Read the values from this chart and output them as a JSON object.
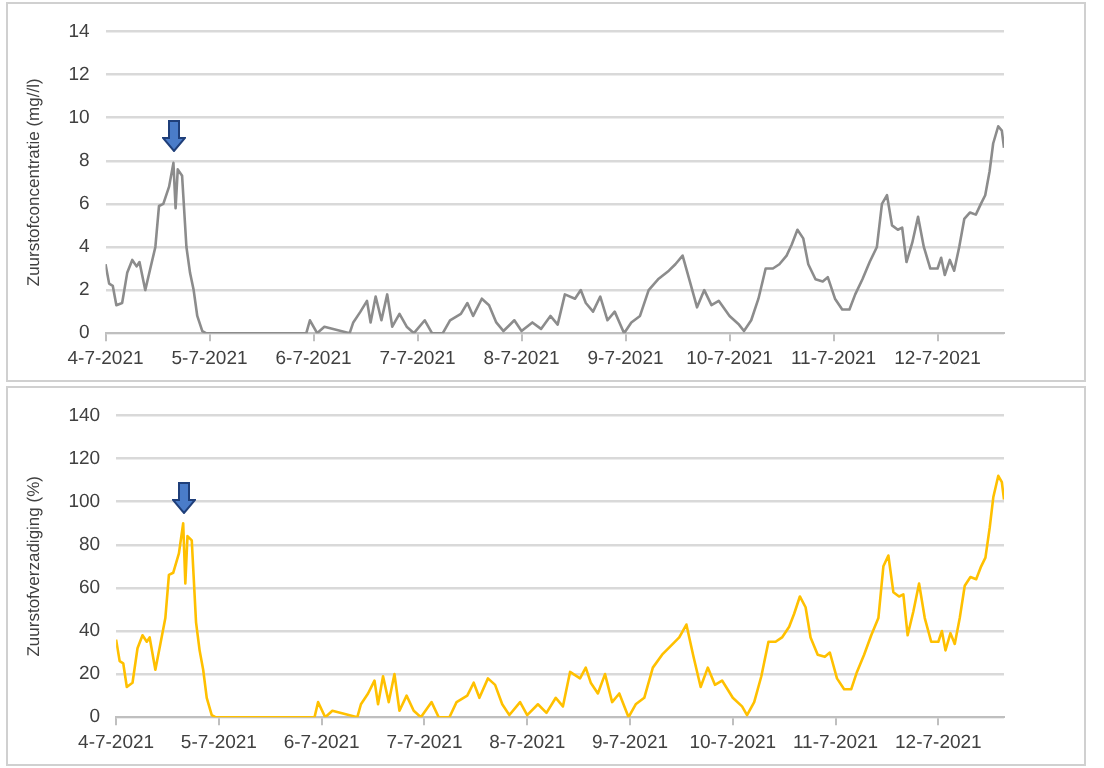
{
  "chart_data": [
    {
      "type": "line",
      "ylabel": "Zuurstofconcentratie (mg//l)",
      "grid": "y",
      "legend": false,
      "marker": "none",
      "line_style": "solid",
      "xlim": [
        "2021-07-04T00:00",
        "2021-07-12T15:20"
      ],
      "ylim": [
        0,
        14
      ],
      "yticks": [
        0,
        2,
        4,
        6,
        8,
        10,
        12,
        14
      ],
      "xticks": [
        {
          "value": "2021-07-04",
          "label": "4-7-2021"
        },
        {
          "value": "2021-07-05",
          "label": "5-7-2021"
        },
        {
          "value": "2021-07-06",
          "label": "6-7-2021"
        },
        {
          "value": "2021-07-07",
          "label": "7-7-2021"
        },
        {
          "value": "2021-07-08",
          "label": "8-7-2021"
        },
        {
          "value": "2021-07-09",
          "label": "9-7-2021"
        },
        {
          "value": "2021-07-10",
          "label": "10-7-2021"
        },
        {
          "value": "2021-07-11",
          "label": "11-7-2021"
        },
        {
          "value": "2021-07-12",
          "label": "12-7-2021"
        }
      ],
      "x": [
        "2021-07-04T00:00",
        "2021-07-04T00:50",
        "2021-07-04T01:40",
        "2021-07-04T02:30",
        "2021-07-04T03:50",
        "2021-07-04T05:00",
        "2021-07-04T06:10",
        "2021-07-04T07:10",
        "2021-07-04T07:50",
        "2021-07-04T09:10",
        "2021-07-04T10:20",
        "2021-07-04T11:30",
        "2021-07-04T12:20",
        "2021-07-04T13:20",
        "2021-07-04T14:40",
        "2021-07-04T15:40",
        "2021-07-04T16:10",
        "2021-07-04T16:40",
        "2021-07-04T17:40",
        "2021-07-04T18:40",
        "2021-07-04T19:30",
        "2021-07-04T20:20",
        "2021-07-04T21:10",
        "2021-07-04T22:20",
        "2021-07-04T23:10",
        "2021-07-05T22:20",
        "2021-07-05T23:10",
        "2021-07-06T00:50",
        "2021-07-06T02:30",
        "2021-07-06T08:20",
        "2021-07-06T09:10",
        "2021-07-06T10:50",
        "2021-07-06T12:20",
        "2021-07-06T13:10",
        "2021-07-06T14:20",
        "2021-07-06T15:40",
        "2021-07-06T17:00",
        "2021-07-06T18:10",
        "2021-07-06T19:50",
        "2021-07-06T21:30",
        "2021-07-06T23:10",
        "2021-07-07T01:40",
        "2021-07-07T03:20",
        "2021-07-07T05:50",
        "2021-07-07T07:30",
        "2021-07-07T10:00",
        "2021-07-07T11:30",
        "2021-07-07T12:50",
        "2021-07-07T14:50",
        "2021-07-07T16:30",
        "2021-07-07T18:10",
        "2021-07-07T19:50",
        "2021-07-07T22:20",
        "2021-07-08T00:00",
        "2021-07-08T02:30",
        "2021-07-08T04:30",
        "2021-07-08T06:40",
        "2021-07-08T08:20",
        "2021-07-08T10:00",
        "2021-07-08T12:20",
        "2021-07-08T13:40",
        "2021-07-08T14:50",
        "2021-07-08T16:30",
        "2021-07-08T18:10",
        "2021-07-08T19:50",
        "2021-07-08T21:30",
        "2021-07-08T23:40",
        "2021-07-09T01:20",
        "2021-07-09T03:20",
        "2021-07-09T05:20",
        "2021-07-09T07:30",
        "2021-07-09T10:00",
        "2021-07-09T11:30",
        "2021-07-09T13:10",
        "2021-07-09T14:50",
        "2021-07-09T16:30",
        "2021-07-09T18:10",
        "2021-07-09T19:50",
        "2021-07-09T21:30",
        "2021-07-10T00:00",
        "2021-07-10T02:10",
        "2021-07-10T03:20",
        "2021-07-10T05:00",
        "2021-07-10T06:40",
        "2021-07-10T08:20",
        "2021-07-10T10:00",
        "2021-07-10T11:30",
        "2021-07-10T13:10",
        "2021-07-10T14:20",
        "2021-07-10T15:40",
        "2021-07-10T17:00",
        "2021-07-10T18:10",
        "2021-07-10T19:50",
        "2021-07-10T21:30",
        "2021-07-10T22:40",
        "2021-07-11T00:20",
        "2021-07-11T02:00",
        "2021-07-11T03:40",
        "2021-07-11T05:00",
        "2021-07-11T06:40",
        "2021-07-11T08:20",
        "2021-07-11T10:00",
        "2021-07-11T11:10",
        "2021-07-11T12:20",
        "2021-07-11T13:30",
        "2021-07-11T14:50",
        "2021-07-11T15:50",
        "2021-07-11T16:50",
        "2021-07-11T18:10",
        "2021-07-11T19:30",
        "2021-07-11T20:50",
        "2021-07-11T22:20",
        "2021-07-12T00:00",
        "2021-07-12T00:50",
        "2021-07-12T01:40",
        "2021-07-12T02:50",
        "2021-07-12T03:50",
        "2021-07-12T05:00",
        "2021-07-12T06:10",
        "2021-07-12T07:30",
        "2021-07-12T08:50",
        "2021-07-12T10:00",
        "2021-07-12T11:00",
        "2021-07-12T12:00",
        "2021-07-12T12:50",
        "2021-07-12T14:00",
        "2021-07-12T14:50",
        "2021-07-12T15:20"
      ],
      "series": [
        {
          "color": "#8c8c8c",
          "values": [
            3.2,
            2.3,
            2.2,
            1.3,
            1.4,
            2.8,
            3.4,
            3.1,
            3.3,
            2.0,
            3.0,
            4.0,
            5.9,
            6.0,
            6.8,
            7.9,
            5.8,
            7.6,
            7.3,
            4.0,
            2.8,
            2.0,
            0.8,
            0.1,
            0,
            0,
            0.6,
            0,
            0.3,
            0,
            0.5,
            1.0,
            1.5,
            0.5,
            1.7,
            0.6,
            1.8,
            0.3,
            0.9,
            0.3,
            0,
            0.6,
            0,
            0,
            0.6,
            0.9,
            1.4,
            0.8,
            1.6,
            1.3,
            0.5,
            0.1,
            0.6,
            0.1,
            0.5,
            0.2,
            0.8,
            0.4,
            1.8,
            1.6,
            2.0,
            1.4,
            1.0,
            1.7,
            0.6,
            1.0,
            0,
            0.5,
            0.8,
            2.0,
            2.5,
            2.9,
            3.2,
            3.6,
            2.4,
            1.2,
            2.0,
            1.3,
            1.5,
            0.8,
            0.4,
            0.1,
            0.6,
            1.6,
            3.0,
            3.0,
            3.2,
            3.6,
            4.1,
            4.8,
            4.4,
            3.2,
            2.5,
            2.4,
            2.6,
            1.6,
            1.1,
            1.1,
            1.8,
            2.5,
            3.3,
            4.0,
            6.0,
            6.4,
            5.0,
            4.8,
            4.9,
            3.3,
            4.2,
            5.4,
            4.0,
            3.0,
            3.0,
            3.5,
            2.7,
            3.4,
            2.9,
            4.0,
            5.3,
            5.6,
            5.5,
            6.0,
            6.4,
            7.5,
            8.8,
            9.6,
            9.4,
            8.6
          ]
        }
      ]
    },
    {
      "type": "line",
      "ylabel": "Zuurstofverzadiging (%)",
      "grid": "y",
      "legend": false,
      "marker": "none",
      "line_style": "solid",
      "xlim": [
        "2021-07-04T00:00",
        "2021-07-12T15:20"
      ],
      "ylim": [
        0,
        140
      ],
      "yticks": [
        0,
        20,
        40,
        60,
        80,
        100,
        120,
        140
      ],
      "xticks": [
        {
          "value": "2021-07-04",
          "label": "4-7-2021"
        },
        {
          "value": "2021-07-05",
          "label": "5-7-2021"
        },
        {
          "value": "2021-07-06",
          "label": "6-7-2021"
        },
        {
          "value": "2021-07-07",
          "label": "7-7-2021"
        },
        {
          "value": "2021-07-08",
          "label": "8-7-2021"
        },
        {
          "value": "2021-07-09",
          "label": "9-7-2021"
        },
        {
          "value": "2021-07-10",
          "label": "10-7-2021"
        },
        {
          "value": "2021-07-11",
          "label": "11-7-2021"
        },
        {
          "value": "2021-07-12",
          "label": "12-7-2021"
        }
      ],
      "x": [
        "2021-07-04T00:00",
        "2021-07-04T00:50",
        "2021-07-04T01:40",
        "2021-07-04T02:30",
        "2021-07-04T03:50",
        "2021-07-04T05:00",
        "2021-07-04T06:10",
        "2021-07-04T07:10",
        "2021-07-04T07:50",
        "2021-07-04T09:10",
        "2021-07-04T10:20",
        "2021-07-04T11:30",
        "2021-07-04T12:20",
        "2021-07-04T13:20",
        "2021-07-04T14:40",
        "2021-07-04T15:40",
        "2021-07-04T16:10",
        "2021-07-04T16:40",
        "2021-07-04T17:40",
        "2021-07-04T18:40",
        "2021-07-04T19:30",
        "2021-07-04T20:20",
        "2021-07-04T21:10",
        "2021-07-04T22:20",
        "2021-07-04T23:10",
        "2021-07-05T22:20",
        "2021-07-05T23:10",
        "2021-07-06T00:50",
        "2021-07-06T02:30",
        "2021-07-06T08:20",
        "2021-07-06T09:10",
        "2021-07-06T10:50",
        "2021-07-06T12:20",
        "2021-07-06T13:10",
        "2021-07-06T14:20",
        "2021-07-06T15:40",
        "2021-07-06T17:00",
        "2021-07-06T18:10",
        "2021-07-06T19:50",
        "2021-07-06T21:30",
        "2021-07-06T23:10",
        "2021-07-07T01:40",
        "2021-07-07T03:20",
        "2021-07-07T05:50",
        "2021-07-07T07:30",
        "2021-07-07T10:00",
        "2021-07-07T11:30",
        "2021-07-07T12:50",
        "2021-07-07T14:50",
        "2021-07-07T16:30",
        "2021-07-07T18:10",
        "2021-07-07T19:50",
        "2021-07-07T22:20",
        "2021-07-08T00:00",
        "2021-07-08T02:30",
        "2021-07-08T04:30",
        "2021-07-08T06:40",
        "2021-07-08T08:20",
        "2021-07-08T10:00",
        "2021-07-08T12:20",
        "2021-07-08T13:40",
        "2021-07-08T14:50",
        "2021-07-08T16:30",
        "2021-07-08T18:10",
        "2021-07-08T19:50",
        "2021-07-08T21:30",
        "2021-07-08T23:40",
        "2021-07-09T01:20",
        "2021-07-09T03:20",
        "2021-07-09T05:20",
        "2021-07-09T07:30",
        "2021-07-09T10:00",
        "2021-07-09T11:30",
        "2021-07-09T13:10",
        "2021-07-09T14:50",
        "2021-07-09T16:30",
        "2021-07-09T18:10",
        "2021-07-09T19:50",
        "2021-07-09T21:30",
        "2021-07-10T00:00",
        "2021-07-10T02:10",
        "2021-07-10T03:20",
        "2021-07-10T05:00",
        "2021-07-10T06:40",
        "2021-07-10T08:20",
        "2021-07-10T10:00",
        "2021-07-10T11:30",
        "2021-07-10T13:10",
        "2021-07-10T14:20",
        "2021-07-10T15:40",
        "2021-07-10T17:00",
        "2021-07-10T18:10",
        "2021-07-10T19:50",
        "2021-07-10T21:30",
        "2021-07-10T22:40",
        "2021-07-11T00:20",
        "2021-07-11T02:00",
        "2021-07-11T03:40",
        "2021-07-11T05:00",
        "2021-07-11T06:40",
        "2021-07-11T08:20",
        "2021-07-11T10:00",
        "2021-07-11T11:10",
        "2021-07-11T12:20",
        "2021-07-11T13:30",
        "2021-07-11T14:50",
        "2021-07-11T15:50",
        "2021-07-11T16:50",
        "2021-07-11T18:10",
        "2021-07-11T19:30",
        "2021-07-11T20:50",
        "2021-07-11T22:20",
        "2021-07-12T00:00",
        "2021-07-12T00:50",
        "2021-07-12T01:40",
        "2021-07-12T02:50",
        "2021-07-12T03:50",
        "2021-07-12T05:00",
        "2021-07-12T06:10",
        "2021-07-12T07:30",
        "2021-07-12T08:50",
        "2021-07-12T10:00",
        "2021-07-12T11:00",
        "2021-07-12T12:00",
        "2021-07-12T12:50",
        "2021-07-12T14:00",
        "2021-07-12T14:50",
        "2021-07-12T15:20"
      ],
      "series": [
        {
          "color": "#ffc000",
          "values": [
            36,
            26,
            25,
            14,
            16,
            32,
            38,
            35,
            37,
            22,
            34,
            46,
            66,
            67,
            76,
            90,
            62,
            84,
            82,
            44,
            31,
            22,
            9,
            1,
            0,
            0,
            7,
            0,
            3,
            0,
            6,
            11,
            17,
            6,
            19,
            7,
            20,
            3,
            10,
            3,
            0,
            7,
            0,
            0,
            7,
            10,
            16,
            9,
            18,
            15,
            6,
            1,
            7,
            1,
            6,
            2,
            9,
            5,
            21,
            18,
            23,
            16,
            11,
            20,
            7,
            11,
            0,
            6,
            9,
            23,
            29,
            34,
            37,
            43,
            28,
            14,
            23,
            15,
            17,
            9,
            5,
            1,
            7,
            19,
            35,
            35,
            37,
            42,
            48,
            56,
            51,
            37,
            29,
            28,
            30,
            18,
            13,
            13,
            21,
            29,
            38,
            46,
            70,
            75,
            58,
            56,
            57,
            38,
            49,
            62,
            46,
            35,
            35,
            40,
            31,
            39,
            34,
            46,
            61,
            65,
            64,
            70,
            74,
            88,
            102,
            112,
            109,
            101
          ]
        }
      ]
    }
  ]
}
